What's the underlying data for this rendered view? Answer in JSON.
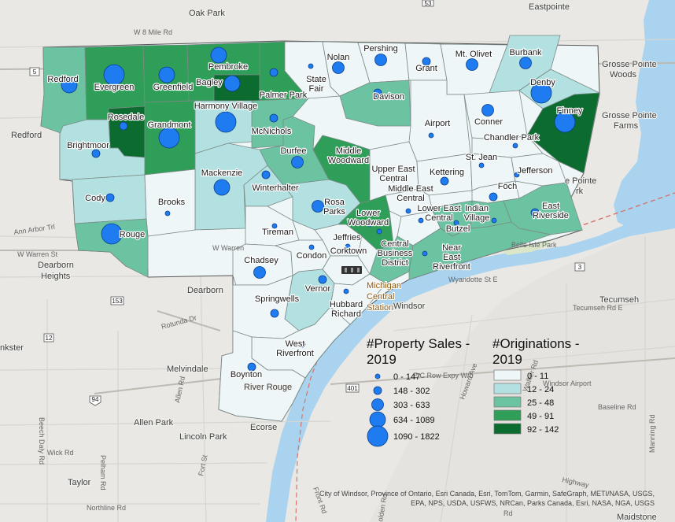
{
  "colors": {
    "water": "#a9d3ee",
    "land": "#e9e8e4",
    "bubble": "#1f7cf0",
    "class_colors": [
      "#eef6f8",
      "#b3e0e0",
      "#6cc3a1",
      "#2f9e58",
      "#0c6b2e"
    ]
  },
  "legend_sales": {
    "title_line1": "#Property Sales -",
    "title_line2": "2019",
    "items": [
      {
        "label": "0 - 147",
        "size": 1
      },
      {
        "label": "148 - 302",
        "size": 2
      },
      {
        "label": "303 - 633",
        "size": 3
      },
      {
        "label": "634 - 1089",
        "size": 4
      },
      {
        "label": "1090 - 1822",
        "size": 5
      }
    ]
  },
  "legend_orig": {
    "title_line1": "#Originations -",
    "title_line2": "2019",
    "items": [
      {
        "label": "0 - 11",
        "class": 0
      },
      {
        "label": "12 - 24",
        "class": 1
      },
      {
        "label": "25 - 48",
        "class": 2
      },
      {
        "label": "49 - 91",
        "class": 3
      },
      {
        "label": "92 - 142",
        "class": 4
      }
    ]
  },
  "neighborhoods": [
    {
      "id": "redford",
      "name": "Redford",
      "class": 2,
      "sales": 4
    },
    {
      "id": "evergreen",
      "name": "Evergreen",
      "class": 3,
      "sales": 5
    },
    {
      "id": "greenfield",
      "name": "Greenfield",
      "class": 3,
      "sales": 4
    },
    {
      "id": "pembroke",
      "name": "Pembroke",
      "class": 3,
      "sales": 4
    },
    {
      "id": "bagley",
      "name": "Bagley",
      "class": 4,
      "sales": 4
    },
    {
      "id": "palmer-park",
      "name": "Palmer Park",
      "class": 3,
      "sales": 2
    },
    {
      "id": "state-fair",
      "name": "State Fair",
      "class": 0,
      "sales": 1
    },
    {
      "id": "nolan",
      "name": "Nolan",
      "class": 0,
      "sales": 3
    },
    {
      "id": "pershing",
      "name": "Pershing",
      "class": 0,
      "sales": 3
    },
    {
      "id": "grant",
      "name": "Grant",
      "class": 0,
      "sales": 2
    },
    {
      "id": "mt-olivet",
      "name": "Mt. Olivet",
      "class": 0,
      "sales": 3
    },
    {
      "id": "burbank",
      "name": "Burbank",
      "class": 1,
      "sales": 3
    },
    {
      "id": "denby",
      "name": "Denby",
      "class": 1,
      "sales": 5
    },
    {
      "id": "finney",
      "name": "Finney",
      "class": 4,
      "sales": 5
    },
    {
      "id": "rosedale",
      "name": "Rosedale",
      "class": 4,
      "sales": 2
    },
    {
      "id": "brightmoor",
      "name": "Brightmoor",
      "class": 1,
      "sales": 2
    },
    {
      "id": "grandmont",
      "name": "Grandmont",
      "class": 3,
      "sales": 5
    },
    {
      "id": "harmony-village",
      "name": "Harmony Village",
      "class": 1,
      "sales": 5
    },
    {
      "id": "mcnichols",
      "name": "McNichols",
      "class": 2,
      "sales": 2
    },
    {
      "id": "davison",
      "name": "Davison",
      "class": 2,
      "sales": 2
    },
    {
      "id": "airport",
      "name": "Airport",
      "class": 0,
      "sales": 1
    },
    {
      "id": "conner",
      "name": "Conner",
      "class": 0,
      "sales": 3
    },
    {
      "id": "chandler-park",
      "name": "Chandler Park",
      "class": 0,
      "sales": 1
    },
    {
      "id": "durfee",
      "name": "Durfee",
      "class": 2,
      "sales": 3
    },
    {
      "id": "middle-woodward",
      "name": "Middle Woodward",
      "class": 3,
      "sales": 1
    },
    {
      "id": "upper-east-central",
      "name": "Upper East Central",
      "class": 0,
      "sales": 1
    },
    {
      "id": "kettering",
      "name": "Kettering",
      "class": 0,
      "sales": 2
    },
    {
      "id": "st-jean",
      "name": "St. Jean",
      "class": 0,
      "sales": 1
    },
    {
      "id": "jefferson",
      "name": "Jefferson",
      "class": 0,
      "sales": 1
    },
    {
      "id": "cody",
      "name": "Cody",
      "class": 1,
      "sales": 2
    },
    {
      "id": "mackenzie",
      "name": "Mackenzie",
      "class": 1,
      "sales": 4
    },
    {
      "id": "winterhalter",
      "name": "Winterhalter",
      "class": 1,
      "sales": 2
    },
    {
      "id": "brooks",
      "name": "Brooks",
      "class": 0,
      "sales": 1
    },
    {
      "id": "rosa-parks",
      "name": "Rosa Parks",
      "class": 1,
      "sales": 3
    },
    {
      "id": "middle-east-central",
      "name": "Middle East Central",
      "class": 0,
      "sales": 1
    },
    {
      "id": "lower-east-central",
      "name": "Lower East Central",
      "class": 0,
      "sales": 1
    },
    {
      "id": "foch",
      "name": "Foch",
      "class": 0,
      "sales": 2
    },
    {
      "id": "indian-village",
      "name": "Indian Village",
      "class": 2,
      "sales": 1
    },
    {
      "id": "east-riverside",
      "name": "East Riverside",
      "class": 2,
      "sales": 2
    },
    {
      "id": "rouge",
      "name": "Rouge",
      "class": 2,
      "sales": 5
    },
    {
      "id": "tireman",
      "name": "Tireman",
      "class": 0,
      "sales": 1
    },
    {
      "id": "lower-woodward",
      "name": "Lower Woodward",
      "class": 3,
      "sales": 1
    },
    {
      "id": "jeffries",
      "name": "Jeffries",
      "class": 0,
      "sales": 1
    },
    {
      "id": "central-business-district",
      "name": "Central Business District",
      "class": 2,
      "sales": 1
    },
    {
      "id": "butzel",
      "name": "Butzel",
      "class": 2,
      "sales": 1
    },
    {
      "id": "near-east-riverfront",
      "name": "Near East Riverfront",
      "class": 2,
      "sales": 1
    },
    {
      "id": "chadsey",
      "name": "Chadsey",
      "class": 0,
      "sales": 3
    },
    {
      "id": "condon",
      "name": "Condon",
      "class": 0,
      "sales": 1
    },
    {
      "id": "corktown",
      "name": "Corktown",
      "class": 0,
      "sales": 1
    },
    {
      "id": "vernor",
      "name": "Vernor",
      "class": 1,
      "sales": 2
    },
    {
      "id": "springwells",
      "name": "Springwells",
      "class": 0,
      "sales": 2
    },
    {
      "id": "hubbard-richard",
      "name": "Hubbard Richard",
      "class": 0,
      "sales": 1
    },
    {
      "id": "west-riverfront",
      "name": "West Riverfront",
      "class": 0,
      "sales": 1
    },
    {
      "id": "boynton",
      "name": "Boynton",
      "class": 0,
      "sales": 2
    }
  ],
  "landmark": {
    "line1": "Michigan",
    "line2": "Central",
    "line3": "Station"
  },
  "places": [
    {
      "id": "oak-park",
      "text": "Oak Park"
    },
    {
      "id": "eastpointe",
      "text": "Eastpointe"
    },
    {
      "id": "gpw1",
      "text": "Grosse Pointe"
    },
    {
      "id": "gpw2",
      "text": "Woods"
    },
    {
      "id": "gpf1",
      "text": "Grosse Pointe"
    },
    {
      "id": "gpf2",
      "text": "Farms"
    },
    {
      "id": "gp-partial1",
      "text": "e Pointe"
    },
    {
      "id": "gp-partial2",
      "text": "rk"
    },
    {
      "id": "redford-twp",
      "text": "Redford"
    },
    {
      "id": "dearborn-heights1",
      "text": "Dearborn"
    },
    {
      "id": "dearborn-heights2",
      "text": "Heights"
    },
    {
      "id": "dearborn",
      "text": "Dearborn"
    },
    {
      "id": "inkster",
      "text": "nkster"
    },
    {
      "id": "melvindale",
      "text": "Melvindale"
    },
    {
      "id": "river-rouge",
      "text": "River Rouge"
    },
    {
      "id": "allen-park",
      "text": "Allen Park"
    },
    {
      "id": "lincoln-park",
      "text": "Lincoln Park"
    },
    {
      "id": "ecorse",
      "text": "Ecorse"
    },
    {
      "id": "taylor",
      "text": "Taylor"
    },
    {
      "id": "windsor",
      "text": "Windsor"
    },
    {
      "id": "tecumseh",
      "text": "Tecumseh"
    },
    {
      "id": "maidstone",
      "text": "Maidstone"
    },
    {
      "id": "windsor-airport",
      "text": "Windsor Airport"
    },
    {
      "id": "belle-isle",
      "text": "Belle Isle Park"
    }
  ],
  "roads": [
    {
      "id": "ann-arbor",
      "text": "Ann Arbor Trl"
    },
    {
      "id": "w-warren",
      "text": "W Warren St"
    },
    {
      "id": "rotunda",
      "text": "Rotunda Dr"
    },
    {
      "id": "allen-rd",
      "text": "Allen Rd"
    },
    {
      "id": "beech-daly",
      "text": "Beech Daly Rd"
    },
    {
      "id": "pelham",
      "text": "Pelham Rd"
    },
    {
      "id": "wick",
      "text": "Wick Rd"
    },
    {
      "id": "northline",
      "text": "Northline Rd"
    },
    {
      "id": "fort-st",
      "text": "Fort St"
    },
    {
      "id": "front-rd",
      "text": "Front Rd"
    },
    {
      "id": "wyandotte",
      "text": "Wyandotte St E"
    },
    {
      "id": "tecumseh-rd",
      "text": "Tecumseh Rd E"
    },
    {
      "id": "e-c-row",
      "text": "E C Row Expy W/b"
    },
    {
      "id": "howard",
      "text": "Howard Ave"
    },
    {
      "id": "walker",
      "text": "Walker Rd"
    },
    {
      "id": "baseline",
      "text": "Baseline Rd"
    },
    {
      "id": "manning",
      "text": "Manning Rd"
    },
    {
      "id": "w-8-mile",
      "text": "W 8 Mile Rd"
    },
    {
      "id": "highway",
      "text": "Highway"
    },
    {
      "id": "w-7mile",
      "text": "W Warren"
    },
    {
      "id": "rd-partial",
      "text": "Rd"
    },
    {
      "id": "olden",
      "text": "olden Rd"
    }
  ],
  "shields": [
    {
      "id": "s5",
      "text": "5"
    },
    {
      "id": "s53",
      "text": "53"
    },
    {
      "id": "s153",
      "text": "153"
    },
    {
      "id": "s12",
      "text": "12"
    },
    {
      "id": "s94",
      "text": "94"
    },
    {
      "id": "s401",
      "text": "401"
    },
    {
      "id": "s3",
      "text": "3"
    }
  ],
  "attribution": {
    "line1": "City of Windsor, Province of Ontario, Esri Canada, Esri, TomTom, Garmin, SafeGraph, METI/NASA, USGS,",
    "line2": "EPA, NPS, USDA, USFWS, NRCan, Parks Canada, Esri, NASA, NGA, USGS"
  }
}
